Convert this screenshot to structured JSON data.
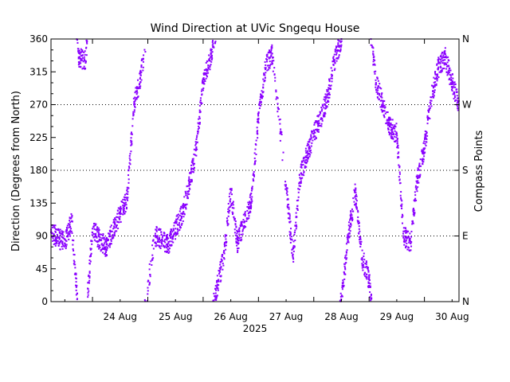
{
  "chart_data": {
    "type": "scatter",
    "title": "Wind Direction at UVic Sngequ House",
    "ylabel": "Direction (Degrees from North)",
    "ylabel_right": "Compass Points",
    "xlabel": "2025",
    "ylim": [
      0,
      360
    ],
    "xlim": [
      "2025-08-23 06:00",
      "2025-08-30 15:00"
    ],
    "yticks": [
      "0",
      "45",
      "90",
      "135",
      "180",
      "225",
      "270",
      "315",
      "360"
    ],
    "xticks": [
      "24 Aug",
      "25 Aug",
      "26 Aug",
      "27 Aug",
      "28 Aug",
      "29 Aug",
      "30 Aug"
    ],
    "compass_ticks": [
      {
        "label": "N",
        "value": 0
      },
      {
        "label": "E",
        "value": 90
      },
      {
        "label": "S",
        "value": 180
      },
      {
        "label": "W",
        "value": 270
      },
      {
        "label": "N",
        "value": 360
      }
    ],
    "gridlines_dotted_at": [
      90,
      180,
      270
    ],
    "point_color": "#8a00ff",
    "series": [
      {
        "values": [
          {
            "x": "2025-08-23 06:00",
            "y": 95
          },
          {
            "x": "2025-08-23 09:00",
            "y": 88
          },
          {
            "x": "2025-08-23 12:00",
            "y": 80
          },
          {
            "x": "2025-08-23 15:00",
            "y": 110
          },
          {
            "x": "2025-08-23 18:00",
            "y": 335
          },
          {
            "x": "2025-08-23 21:00",
            "y": 330
          },
          {
            "x": "2025-08-24 00:00",
            "y": 100
          },
          {
            "x": "2025-08-24 03:00",
            "y": 85
          },
          {
            "x": "2025-08-24 06:00",
            "y": 75
          },
          {
            "x": "2025-08-24 09:00",
            "y": 100
          },
          {
            "x": "2025-08-24 12:00",
            "y": 120
          },
          {
            "x": "2025-08-24 15:00",
            "y": 140
          },
          {
            "x": "2025-08-24 18:00",
            "y": 270
          },
          {
            "x": "2025-08-24 21:00",
            "y": 310
          },
          {
            "x": "2025-08-25 03:00",
            "y": 90
          },
          {
            "x": "2025-08-25 06:00",
            "y": 85
          },
          {
            "x": "2025-08-25 09:00",
            "y": 80
          },
          {
            "x": "2025-08-25 12:00",
            "y": 100
          },
          {
            "x": "2025-08-25 15:00",
            "y": 120
          },
          {
            "x": "2025-08-25 18:00",
            "y": 160
          },
          {
            "x": "2025-08-25 21:00",
            "y": 210
          },
          {
            "x": "2025-08-26 00:00",
            "y": 300
          },
          {
            "x": "2025-08-26 03:00",
            "y": 330
          },
          {
            "x": "2025-08-26 06:00",
            "y": 20
          },
          {
            "x": "2025-08-26 09:00",
            "y": 60
          },
          {
            "x": "2025-08-26 12:00",
            "y": 150
          },
          {
            "x": "2025-08-26 15:00",
            "y": 80
          },
          {
            "x": "2025-08-26 18:00",
            "y": 110
          },
          {
            "x": "2025-08-26 21:00",
            "y": 140
          },
          {
            "x": "2025-08-27 00:00",
            "y": 250
          },
          {
            "x": "2025-08-27 03:00",
            "y": 320
          },
          {
            "x": "2025-08-27 06:00",
            "y": 340
          },
          {
            "x": "2025-08-27 12:00",
            "y": 160
          },
          {
            "x": "2025-08-27 15:00",
            "y": 60
          },
          {
            "x": "2025-08-27 18:00",
            "y": 170
          },
          {
            "x": "2025-08-27 21:00",
            "y": 200
          },
          {
            "x": "2025-08-28 00:00",
            "y": 230
          },
          {
            "x": "2025-08-28 03:00",
            "y": 250
          },
          {
            "x": "2025-08-28 06:00",
            "y": 280
          },
          {
            "x": "2025-08-28 09:00",
            "y": 330
          },
          {
            "x": "2025-08-28 12:00",
            "y": 360
          },
          {
            "x": "2025-08-28 15:00",
            "y": 90
          },
          {
            "x": "2025-08-28 18:00",
            "y": 150
          },
          {
            "x": "2025-08-28 21:00",
            "y": 60
          },
          {
            "x": "2025-08-29 00:00",
            "y": 30
          },
          {
            "x": "2025-08-29 03:00",
            "y": 300
          },
          {
            "x": "2025-08-29 06:00",
            "y": 270
          },
          {
            "x": "2025-08-29 09:00",
            "y": 240
          },
          {
            "x": "2025-08-29 12:00",
            "y": 230
          },
          {
            "x": "2025-08-29 15:00",
            "y": 90
          },
          {
            "x": "2025-08-29 18:00",
            "y": 80
          },
          {
            "x": "2025-08-29 21:00",
            "y": 170
          },
          {
            "x": "2025-08-30 00:00",
            "y": 210
          },
          {
            "x": "2025-08-30 03:00",
            "y": 280
          },
          {
            "x": "2025-08-30 06:00",
            "y": 320
          },
          {
            "x": "2025-08-30 09:00",
            "y": 335
          },
          {
            "x": "2025-08-30 12:00",
            "y": 300
          },
          {
            "x": "2025-08-30 15:00",
            "y": 270
          }
        ]
      }
    ]
  }
}
